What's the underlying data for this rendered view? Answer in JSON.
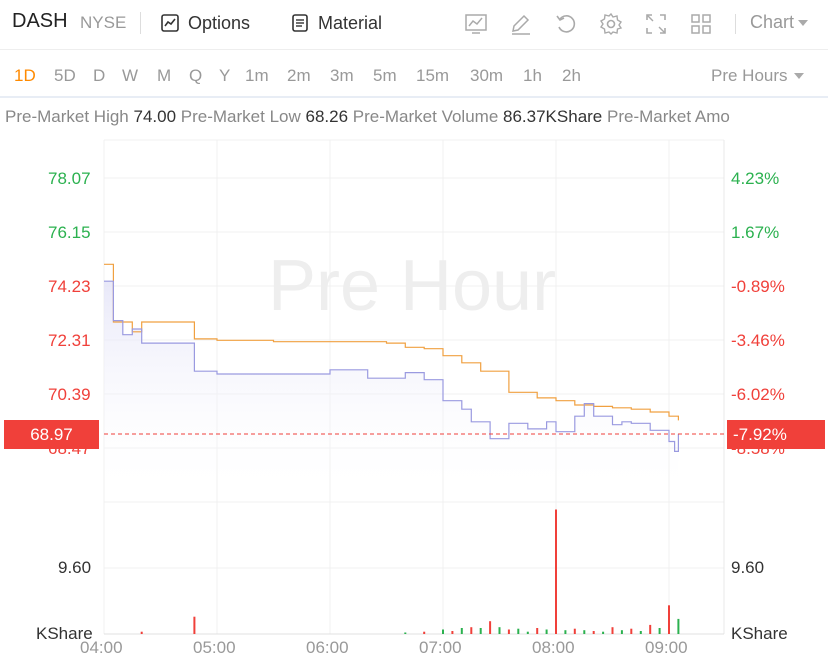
{
  "header": {
    "ticker": "DASH",
    "exchange": "NYSE",
    "options_label": "Options",
    "material_label": "Material",
    "chart_type_label": "Chart"
  },
  "periods": [
    "1D",
    "5D",
    "D",
    "W",
    "M",
    "Q",
    "Y",
    "1m",
    "2m",
    "3m",
    "5m",
    "15m",
    "30m",
    "1h",
    "2h"
  ],
  "active_period": "1D",
  "session_label": "Pre Hours",
  "stats": {
    "high_label": "Pre-Market High",
    "high_value": "74.00",
    "low_label": "Pre-Market Low",
    "low_value": "68.26",
    "volume_label": "Pre-Market Volume",
    "volume_value": "86.37KShare",
    "amount_label": "Pre-Market Amo"
  },
  "watermark": "Pre Hour",
  "current_price": "68.97",
  "current_pct": "-7.92%",
  "colors": {
    "up": "#2bb14f",
    "down": "#f0403a",
    "avg_line": "#f0a040",
    "price_line": "#9a9ae0",
    "accent": "#ff8a00"
  },
  "chart_data": {
    "type": "line",
    "title": "",
    "x_ticks": [
      "04:00",
      "05:00",
      "06:00",
      "07:00",
      "08:00",
      "09:00"
    ],
    "price_axis": {
      "left_ticks": [
        "78.07",
        "76.15",
        "74.23",
        "72.31",
        "70.39",
        "68.47"
      ],
      "right_ticks": [
        "4.23%",
        "1.67%",
        "-0.89%",
        "-3.46%",
        "-6.02%",
        "-8.58%"
      ],
      "ylim": [
        68.0,
        79.0
      ]
    },
    "volume_axis": {
      "left_tick": "9.60",
      "right_tick": "9.60",
      "unit_left": "KShare",
      "unit_right": "KShare"
    },
    "series": [
      {
        "name": "",
        "x": [
          "04:00",
          "04:05",
          "04:15",
          "04:20",
          "04:30",
          "04:45",
          "04:48",
          "05:00",
          "05:30",
          "06:00",
          "06:30",
          "06:40",
          "06:50",
          "07:00",
          "07:10",
          "07:20",
          "07:35",
          "07:50",
          "08:00",
          "08:10",
          "08:20",
          "08:30",
          "08:40",
          "08:50",
          "09:00",
          "09:05"
        ],
        "values": [
          75.0,
          72.95,
          72.6,
          72.95,
          72.95,
          72.95,
          72.35,
          72.3,
          72.25,
          72.25,
          72.2,
          72.05,
          72.0,
          71.75,
          71.5,
          71.2,
          70.45,
          70.25,
          70.15,
          70.0,
          69.95,
          69.9,
          69.85,
          69.75,
          69.6,
          69.45
        ]
      },
      {
        "name": "",
        "x": [
          "04:00",
          "04:05",
          "04:10",
          "04:15",
          "04:20",
          "04:30",
          "04:45",
          "04:48",
          "05:00",
          "05:30",
          "06:00",
          "06:10",
          "06:20",
          "06:40",
          "06:50",
          "07:00",
          "07:10",
          "07:15",
          "07:25",
          "07:35",
          "07:45",
          "07:55",
          "08:00",
          "08:10",
          "08:15",
          "08:20",
          "08:30",
          "08:35",
          "08:40",
          "08:50",
          "09:00",
          "09:03",
          "09:05"
        ],
        "values": [
          74.4,
          73.0,
          72.5,
          72.7,
          72.2,
          72.2,
          72.2,
          71.2,
          71.1,
          71.1,
          71.25,
          71.25,
          70.95,
          71.15,
          70.9,
          70.15,
          69.85,
          69.4,
          68.8,
          69.35,
          69.15,
          69.4,
          69.05,
          69.6,
          70.05,
          69.6,
          69.3,
          69.4,
          69.35,
          69.1,
          68.7,
          68.35,
          68.97
        ]
      }
    ],
    "volume": {
      "x": [
        "04:20",
        "04:48",
        "06:40",
        "06:50",
        "07:00",
        "07:05",
        "07:10",
        "07:15",
        "07:20",
        "07:25",
        "07:30",
        "07:35",
        "07:40",
        "07:45",
        "07:50",
        "07:55",
        "08:00",
        "08:05",
        "08:10",
        "08:15",
        "08:20",
        "08:25",
        "08:30",
        "08:35",
        "08:40",
        "08:45",
        "08:50",
        "08:55",
        "09:00",
        "09:05"
      ],
      "values": [
        0.3,
        2.3,
        0.2,
        0.3,
        0.6,
        0.4,
        0.8,
        0.9,
        0.8,
        1.7,
        0.9,
        0.6,
        0.7,
        0.3,
        0.8,
        0.6,
        16.5,
        0.5,
        0.7,
        0.5,
        0.4,
        0.3,
        0.9,
        0.5,
        0.7,
        0.4,
        1.2,
        0.8,
        3.8,
        2.0
      ],
      "directions": [
        "down",
        "down",
        "up",
        "down",
        "up",
        "down",
        "up",
        "down",
        "up",
        "down",
        "up",
        "down",
        "up",
        "up",
        "down",
        "up",
        "down",
        "up",
        "down",
        "up",
        "down",
        "up",
        "down",
        "up",
        "down",
        "up",
        "down",
        "up",
        "down",
        "up"
      ]
    }
  }
}
